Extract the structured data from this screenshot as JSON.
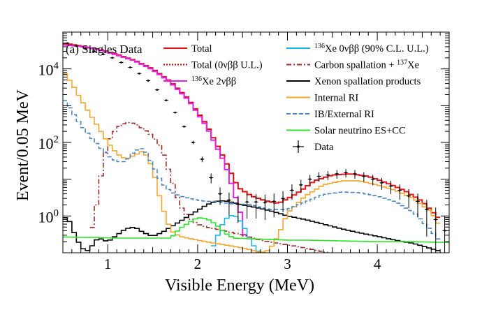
{
  "chart_data": {
    "type": "line",
    "panel_label": "(a) Singles Data",
    "xlabel": "Visible Energy (MeV)",
    "ylabel": "Event/0.05 MeV",
    "log_y": true,
    "xlim": [
      0.5,
      4.8
    ],
    "ylim": [
      0.1,
      100000
    ],
    "x_ticks": [
      "1",
      "2",
      "3",
      "4"
    ],
    "x_tick_values": [
      1,
      2,
      3,
      4
    ],
    "y_ticks": [
      {
        "value": 1,
        "base": "10",
        "exp": "0"
      },
      {
        "value": 100,
        "base": "10",
        "exp": "2"
      },
      {
        "value": 10000,
        "base": "10",
        "exp": "4"
      }
    ],
    "legend": [
      {
        "label": "Total",
        "series": "total"
      },
      {
        "label": "Total (0νββ U.L.)",
        "series": "total_ul"
      },
      {
        "label_sup": "136",
        "label": "Xe 2νββ",
        "series": "xe2nbb"
      },
      {
        "label_sup": "136",
        "label": "Xe 0νββ (90% C.L. U.L.)",
        "series": "xe0nbb"
      },
      {
        "label": "Carbon spallation + ",
        "label_sup2": "137",
        "label_end": "Xe",
        "series": "carbon"
      },
      {
        "label": "Xenon spallation products",
        "series": "xenon"
      },
      {
        "label": "Internal RI",
        "series": "internal"
      },
      {
        "label": "IB/External RI",
        "series": "ibext"
      },
      {
        "label": "Solar neutrino ES+CC",
        "series": "solar"
      },
      {
        "label": "Data",
        "series": "data"
      }
    ],
    "series": [
      {
        "key": "total",
        "color": "#e8161b",
        "dash": "",
        "x": [
          0.5,
          0.7,
          0.9,
          1.1,
          1.3,
          1.5,
          1.7,
          1.9,
          2.1,
          2.3,
          2.45,
          2.6,
          2.75,
          2.9,
          3.1,
          3.3,
          3.5,
          3.7,
          3.9,
          4.1,
          4.3,
          4.5,
          4.7
        ],
        "y": [
          50000,
          42000,
          34000,
          25000,
          17000,
          10000,
          4500,
          1500,
          300,
          35,
          6,
          3.5,
          2.6,
          2.2,
          4,
          9,
          13,
          14,
          12,
          8,
          5,
          2.5,
          0.8
        ]
      },
      {
        "key": "total_ul",
        "color": "#c00000",
        "dash": "2,2",
        "x": [
          0.5,
          0.7,
          0.9,
          1.1,
          1.3,
          1.5,
          1.7,
          1.9,
          2.1,
          2.3,
          2.45,
          2.6,
          2.75,
          2.9
        ],
        "y": [
          50000,
          42000,
          34000,
          25000,
          17000,
          10000,
          4500,
          1500,
          300,
          35,
          6,
          3.5,
          2.6,
          2.2
        ]
      },
      {
        "key": "xe2nbb",
        "color": "#e71fe0",
        "dash": "",
        "x": [
          0.5,
          0.7,
          0.9,
          1.1,
          1.3,
          1.5,
          1.7,
          1.9,
          2.1,
          2.3,
          2.4,
          2.5,
          2.55
        ],
        "y": [
          45000,
          41000,
          33000,
          24000,
          16500,
          9500,
          4200,
          1400,
          270,
          28,
          5,
          0.8,
          0.12
        ]
      },
      {
        "key": "xe0nbb",
        "color": "#19b6ea",
        "dash": "",
        "x": [
          2.15,
          2.2,
          2.25,
          2.3,
          2.35,
          2.4,
          2.45,
          2.5,
          2.55,
          2.6,
          2.65,
          2.7,
          2.75
        ],
        "y": [
          0.12,
          0.2,
          0.45,
          0.75,
          1.0,
          1.05,
          0.9,
          0.6,
          0.35,
          0.2,
          0.12,
          0.1,
          0.1
        ]
      },
      {
        "key": "carbon",
        "color": "#9b2a2a",
        "dash": "7,3,2,3",
        "x": [
          0.8,
          0.85,
          0.9,
          0.95,
          1.0,
          1.1,
          1.2,
          1.3,
          1.4,
          1.5,
          1.6,
          1.7,
          1.8,
          1.9,
          2.0,
          2.1,
          2.3,
          2.5,
          2.7,
          2.9,
          3.1,
          3.3,
          3.45
        ],
        "y": [
          0.3,
          0.8,
          5,
          30,
          100,
          250,
          350,
          330,
          230,
          150,
          70,
          12,
          2,
          0.9,
          0.6,
          0.5,
          0.4,
          0.3,
          0.22,
          0.18,
          0.15,
          0.12,
          0.1
        ]
      },
      {
        "key": "xenon",
        "color": "#000000",
        "dash": "",
        "x": [
          0.5,
          0.55,
          0.6,
          0.65,
          0.7,
          0.75,
          0.8,
          0.85,
          0.9,
          1.0,
          1.1,
          1.2,
          1.3,
          1.4,
          1.5,
          1.6,
          1.7,
          1.8,
          1.9,
          2.0,
          2.1,
          2.2,
          2.3,
          2.4,
          2.5,
          2.6,
          2.7,
          2.8,
          2.9,
          3.0,
          3.2,
          3.4,
          3.6,
          3.8,
          4.0,
          4.2,
          4.4,
          4.6,
          4.7
        ],
        "y": [
          0.8,
          1.0,
          0.5,
          0.25,
          0.15,
          0.11,
          0.12,
          0.2,
          0.25,
          0.2,
          0.3,
          0.45,
          0.5,
          0.35,
          0.28,
          0.35,
          0.5,
          0.7,
          1.0,
          1.4,
          2.0,
          2.5,
          2.6,
          2.3,
          2.0,
          1.8,
          1.6,
          1.4,
          1.2,
          1.0,
          0.8,
          0.6,
          0.45,
          0.35,
          0.28,
          0.22,
          0.18,
          0.13,
          0.11
        ]
      },
      {
        "key": "internal",
        "color": "#f3a62b",
        "dash": "",
        "x": [
          0.5,
          0.6,
          0.7,
          0.8,
          0.9,
          1.0,
          1.1,
          1.2,
          1.3,
          1.4,
          1.5,
          1.6,
          1.7,
          1.8,
          2.0,
          2.2,
          2.4,
          2.6,
          2.7,
          2.8,
          2.9,
          3.0,
          3.2,
          3.4,
          3.6,
          3.8,
          4.0,
          4.2,
          4.4,
          4.6,
          4.7
        ],
        "y": [
          9000,
          4000,
          1500,
          600,
          250,
          100,
          50,
          35,
          45,
          60,
          20,
          2,
          0.4,
          0.28,
          0.22,
          0.18,
          0.15,
          0.12,
          0.1,
          0.12,
          0.3,
          1.2,
          3.5,
          7,
          9,
          9,
          7,
          5,
          3,
          1.3,
          0.5
        ]
      },
      {
        "key": "ibext",
        "color": "#4a86c5",
        "dash": "6,3",
        "x": [
          0.5,
          0.6,
          0.7,
          0.8,
          0.9,
          1.0,
          1.1,
          1.2,
          1.3,
          1.4,
          1.5,
          1.6,
          1.7,
          1.8,
          1.9,
          2.0,
          2.1,
          2.2,
          2.3,
          2.4,
          2.5,
          2.6,
          2.7,
          2.8,
          2.9,
          3.0,
          3.2,
          3.4,
          3.6,
          3.8,
          4.0,
          4.2,
          4.4,
          4.6,
          4.7
        ],
        "y": [
          1700,
          700,
          300,
          150,
          80,
          45,
          30,
          30,
          60,
          70,
          25,
          8,
          4.5,
          3.5,
          3.0,
          2.7,
          2.5,
          2.5,
          2.3,
          2.1,
          2.1,
          2.0,
          1.7,
          1.5,
          1.5,
          1.5,
          2.4,
          3.8,
          4.5,
          4.3,
          3.5,
          2.4,
          1.3,
          0.4,
          0.2
        ]
      },
      {
        "key": "solar",
        "color": "#2ee32c",
        "dash": "",
        "x": [
          0.5,
          0.7,
          0.9,
          1.1,
          1.3,
          1.5,
          1.7,
          1.8,
          1.9,
          2.0,
          2.1,
          2.2,
          2.3,
          2.4,
          2.6,
          2.8,
          3.0,
          3.2,
          3.6,
          4.0,
          4.4,
          4.8
        ],
        "y": [
          0.27,
          0.26,
          0.26,
          0.25,
          0.25,
          0.25,
          0.25,
          0.45,
          0.65,
          0.9,
          0.85,
          0.6,
          0.35,
          0.25,
          0.24,
          0.23,
          0.22,
          0.22,
          0.21,
          0.2,
          0.2,
          0.19
        ]
      }
    ],
    "data_points": {
      "color": "#000000",
      "x": [
        0.55,
        0.65,
        0.75,
        0.85,
        0.95,
        1.05,
        1.15,
        1.25,
        1.35,
        1.45,
        1.55,
        1.65,
        1.75,
        1.85,
        1.95,
        2.05,
        2.15,
        2.25,
        2.35,
        2.45,
        2.55,
        2.65,
        2.75,
        2.85,
        2.95,
        3.05,
        3.15,
        3.25,
        3.35,
        3.45,
        3.55,
        3.65,
        3.75,
        3.85,
        3.95,
        4.05,
        4.15,
        4.25,
        4.35,
        4.45,
        4.55,
        4.65,
        4.75
      ],
      "y": [
        50000,
        42000,
        36000,
        30000,
        25000,
        20000,
        15000,
        11000,
        7500,
        4800,
        2700,
        1400,
        650,
        270,
        100,
        35,
        11,
        4,
        2.7,
        2.1,
        2.4,
        2.4,
        2.3,
        2.5,
        3,
        5,
        7,
        10,
        12,
        13,
        14,
        15,
        14,
        12,
        10,
        8,
        6.5,
        5,
        3.5,
        2.5,
        1.5,
        0.8,
        0.4
      ]
    }
  }
}
